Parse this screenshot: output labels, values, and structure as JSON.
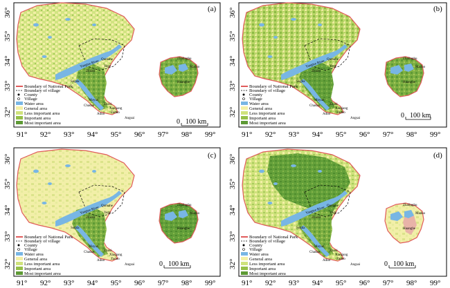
{
  "figure": {
    "panels": [
      {
        "letter": "(a)",
        "legend": {
          "boundary_np": "Boundary of National Park",
          "boundary_village": "Boundary of village",
          "county": "County",
          "village": "Village",
          "classes": [
            "Water area",
            "General area",
            "Less important area",
            "Important area",
            "Most important area"
          ]
        },
        "scale_label": "100 km"
      },
      {
        "letter": "(b)",
        "legend": {
          "boundary_np": "Boundary of National Park",
          "boundary_village": "Boundary of village",
          "county": "County",
          "village": "Village",
          "classes": [
            "Water area",
            "General area",
            "Less important area",
            "Important area",
            "Most important area"
          ]
        },
        "scale_label": "100 km"
      },
      {
        "letter": "(c)",
        "legend": {
          "boundary_np": "Boundary of National Park",
          "boundary_village": "Boundary of village",
          "county": "County",
          "village": "Village",
          "classes": [
            "Water area",
            "General area",
            "Less important area",
            "Important area",
            "Most important area"
          ]
        },
        "scale_label": "100 km"
      },
      {
        "letter": "(d)",
        "legend": {
          "boundary_np": "Boundary of National Park",
          "boundary_village": "Boundary of village",
          "county": "County",
          "village": "Village",
          "classes": [
            "Water area",
            "General area",
            "Less important area",
            "Important area",
            "Most important area"
          ]
        },
        "scale_label": "100 km"
      }
    ],
    "lat_ticks_top": [
      "36°",
      "35°",
      "34°",
      "33°",
      "32°"
    ],
    "lat_ticks_bottom": [
      "36°",
      "35°",
      "34°",
      "33°",
      "32°"
    ],
    "lon_ticks": [
      "91°",
      "92°",
      "93°",
      "94°",
      "95°",
      "96°",
      "97°",
      "98°",
      "99°"
    ],
    "place_names": {
      "qumahe": "Qumahe",
      "yege": "Yege",
      "zhidoi": "Zhidoi",
      "sogda": "Sogda",
      "moyun": "Moyun",
      "chadan": "Chadan",
      "zhaxi": "Zhaxi",
      "zaduo": "Zaduo",
      "aduo": "Aduo",
      "xiaqiang": "Xiaqiang",
      "angsai": "Angsai",
      "zhalinghu": "Zhalinghu",
      "maduo": "Maduo",
      "huanghe": "Huanghe",
      "yangtze": "Yangtze River"
    },
    "colors": {
      "water": "#78b6e4",
      "general": "#f4f0a6",
      "less": "#cfe27c",
      "important": "#95bf48",
      "most": "#5e9a35",
      "np_boundary": "#e05a5a",
      "village_boundary": "#000000"
    }
  }
}
